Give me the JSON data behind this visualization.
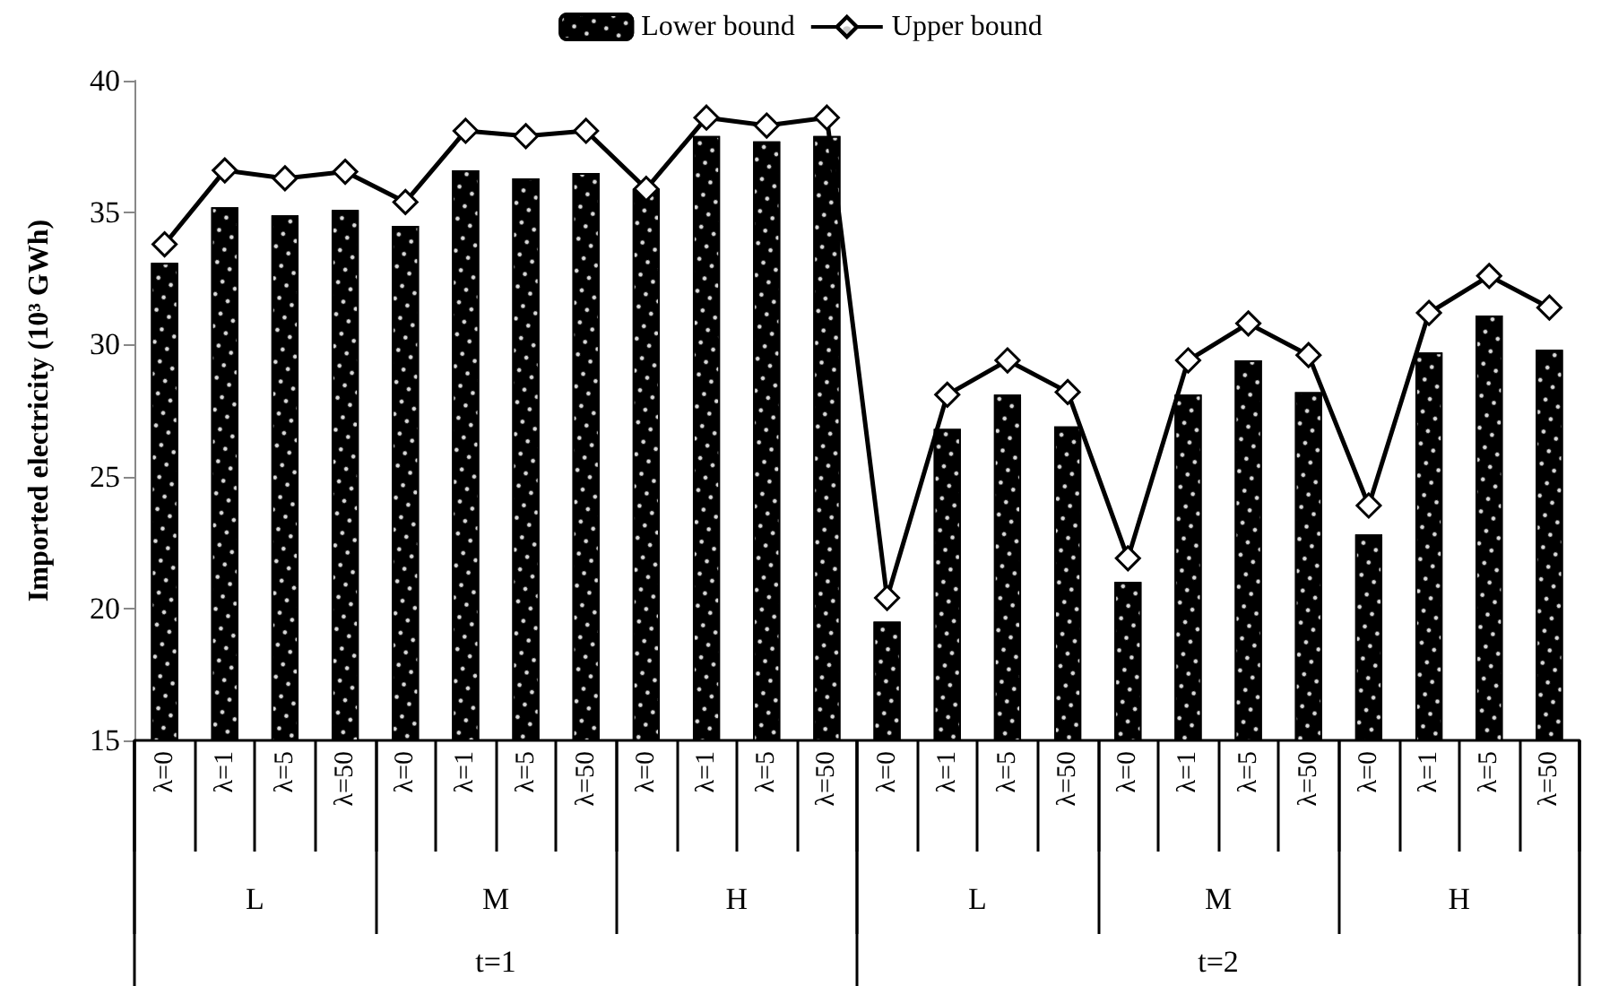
{
  "chart_data": {
    "type": "bar",
    "categories": [
      "λ=0",
      "λ=1",
      "λ=5",
      "λ=50",
      "λ=0",
      "λ=1",
      "λ=5",
      "λ=50",
      "λ=0",
      "λ=1",
      "λ=5",
      "λ=50",
      "λ=0",
      "λ=1",
      "λ=5",
      "λ=50",
      "λ=0",
      "λ=1",
      "λ=5",
      "λ=50",
      "λ=0",
      "λ=1",
      "λ=5",
      "λ=50"
    ],
    "series": [
      {
        "name": "Lower bound",
        "color": "#000000",
        "values": [
          33.1,
          35.2,
          34.9,
          35.1,
          34.5,
          36.6,
          36.3,
          36.5,
          35.9,
          37.9,
          37.7,
          37.9,
          19.5,
          26.8,
          28.1,
          26.9,
          21.0,
          28.1,
          29.4,
          28.2,
          22.8,
          29.7,
          31.1,
          29.8
        ]
      },
      {
        "name": "Upper bound",
        "type": "line",
        "color": "#000000",
        "values": [
          33.8,
          36.6,
          36.3,
          36.55,
          35.4,
          38.1,
          37.9,
          38.1,
          35.9,
          38.6,
          38.3,
          38.6,
          20.4,
          28.1,
          29.4,
          28.2,
          21.9,
          29.4,
          30.8,
          29.6,
          23.9,
          31.2,
          32.6,
          31.4
        ]
      }
    ],
    "annotations": [
      "L",
      "M",
      "H",
      "L",
      "M",
      "H",
      "t=1",
      "t=2"
    ],
    "ylabel": "Imported electricity (10³ GWh)",
    "ylim": [
      15,
      40
    ],
    "yticks": [
      15,
      20,
      25,
      30,
      35,
      40
    ],
    "grid": false,
    "legend": "top",
    "marker": "diamond",
    "line_style": "solid"
  }
}
